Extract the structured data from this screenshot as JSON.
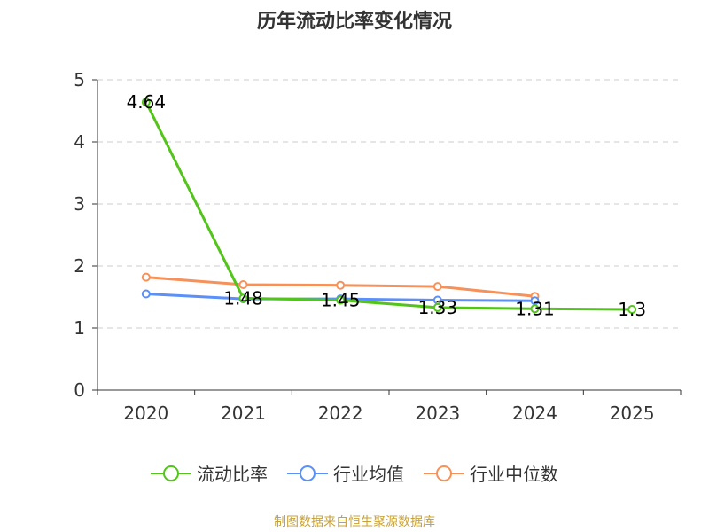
{
  "chart_data": {
    "type": "line",
    "title": "历年流动比率变化情况",
    "categories": [
      "2020",
      "2021",
      "2022",
      "2023",
      "2024",
      "2025"
    ],
    "ylim": [
      0,
      5
    ],
    "yticks": [
      0,
      1,
      2,
      3,
      4,
      5
    ],
    "grid": true,
    "legend_position": "bottom",
    "series": [
      {
        "name": "流动比率",
        "color": "#52c41a",
        "values": [
          4.64,
          1.48,
          1.45,
          1.33,
          1.31,
          1.3
        ],
        "labels": [
          "4.64",
          "1.48",
          "1.45",
          "1.33",
          "1.31",
          "1.3"
        ]
      },
      {
        "name": "行业均值",
        "color": "#5b8ff9",
        "values": [
          1.55,
          1.47,
          1.47,
          1.45,
          1.44,
          null
        ]
      },
      {
        "name": "行业中位数",
        "color": "#f6915a",
        "values": [
          1.82,
          1.7,
          1.69,
          1.67,
          1.51,
          null
        ]
      }
    ]
  },
  "footer": {
    "source": "制图数据来自恒生聚源数据库"
  }
}
